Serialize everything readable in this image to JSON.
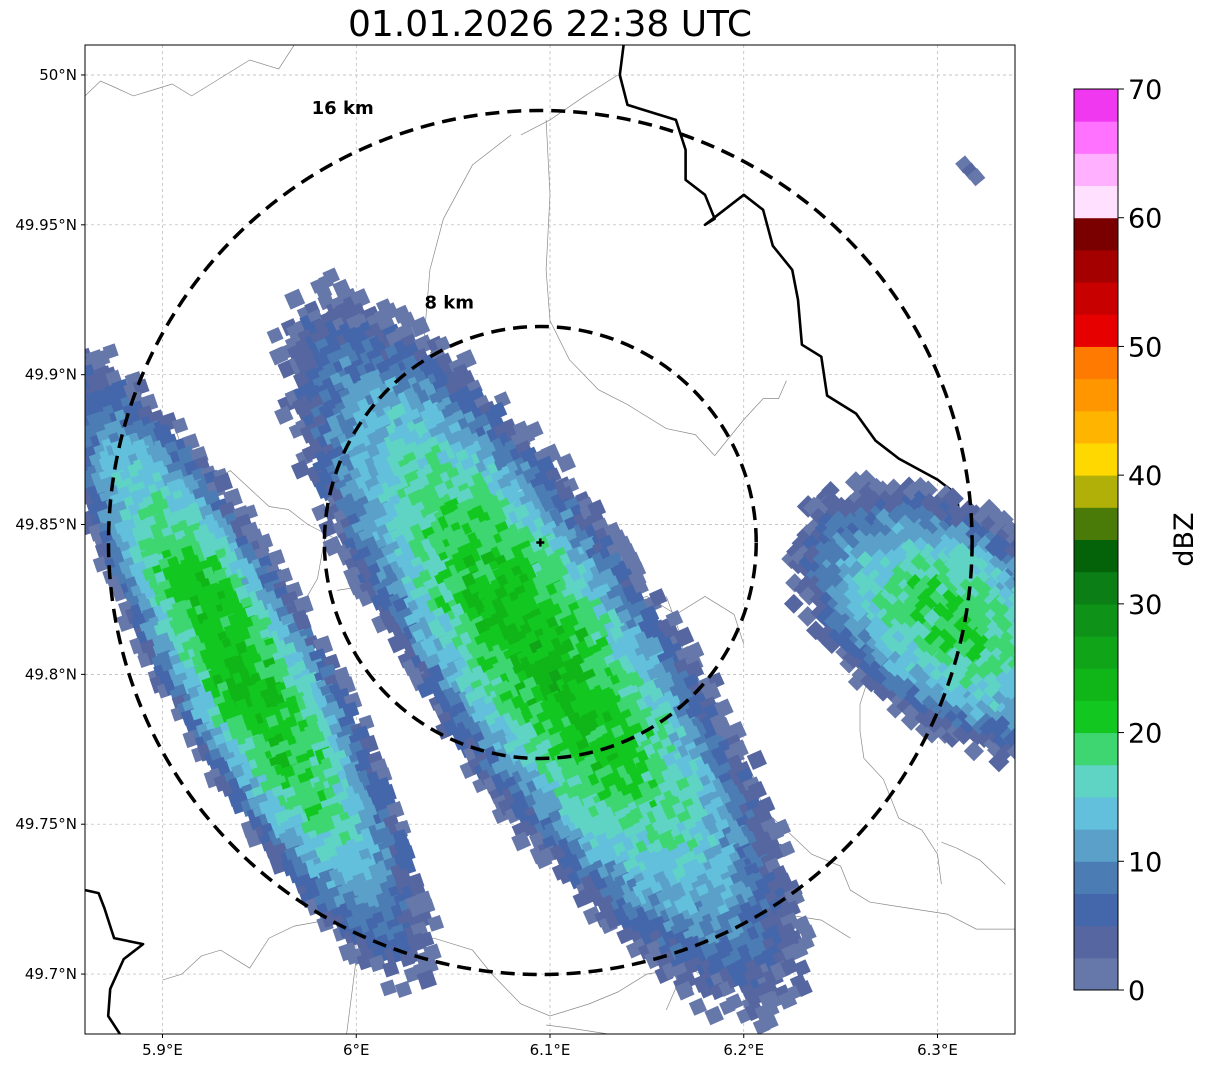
{
  "title": "01.01.2026 22:38 UTC",
  "chart_data": {
    "type": "heatmap",
    "title": "01.01.2026 22:38 UTC",
    "xlabel": "",
    "ylabel": "",
    "x_range": [
      5.86,
      6.34
    ],
    "y_range": [
      49.68,
      50.01
    ],
    "x_ticks": [
      5.9,
      6.0,
      6.1,
      6.2,
      6.3
    ],
    "x_tick_labels": [
      "5.9°E",
      "6°E",
      "6.1°E",
      "6.2°E",
      "6.3°E"
    ],
    "y_ticks": [
      49.7,
      49.75,
      49.8,
      49.85,
      49.9,
      49.95,
      50.0
    ],
    "y_tick_labels": [
      "49.7°N",
      "49.75°N",
      "49.8°N",
      "49.85°N",
      "49.9°N",
      "49.95°N",
      "50°N"
    ],
    "grid": true,
    "radar_site": {
      "lon": 6.095,
      "lat": 49.844
    },
    "range_rings": [
      {
        "label": "8 km",
        "radius_km": 8,
        "label_lon": 6.048,
        "label_lat": 49.922
      },
      {
        "label": "16 km",
        "radius_km": 16,
        "label_lon": 5.993,
        "label_lat": 49.987
      }
    ],
    "colorbar": {
      "label": "dBZ",
      "min": 0,
      "max": 70,
      "step": 2.5,
      "tick_values": [
        0,
        10,
        20,
        30,
        40,
        50,
        60,
        70
      ],
      "tick_labels": [
        "0",
        "10",
        "20",
        "30",
        "40",
        "50",
        "60",
        "70"
      ],
      "colors": [
        "#6677aa",
        "#5566a0",
        "#4466aa",
        "#4c7cb4",
        "#5aa0c8",
        "#62c0dc",
        "#5fd4c4",
        "#3dd670",
        "#12c820",
        "#10b618",
        "#10a418",
        "#0e9218",
        "#0b7e16",
        "#046208",
        "#4a7a08",
        "#b0b008",
        "#ffd800",
        "#ffb400",
        "#ff9600",
        "#ff7a00",
        "#e60000",
        "#c80000",
        "#a40000",
        "#7a0000",
        "#ffe0ff",
        "#ffb0ff",
        "#ff72ff",
        "#f038f0"
      ]
    },
    "echo_cells": [
      {
        "name": "west-cell",
        "lon": 5.942,
        "lat": 49.802,
        "half_length_km": 13.2,
        "half_width_km": 3.0,
        "angle_deg": 61,
        "peak_dbz": 22
      },
      {
        "name": "central-cell",
        "lon": 6.097,
        "lat": 49.807,
        "half_length_km": 15.7,
        "half_width_km": 4.6,
        "angle_deg": 56,
        "peak_dbz": 22
      },
      {
        "name": "east-cell",
        "lon": 6.31,
        "lat": 49.818,
        "half_length_km": 6.8,
        "half_width_km": 4.0,
        "angle_deg": 35,
        "peak_dbz": 19
      },
      {
        "name": "northeast-speck",
        "lon": 6.317,
        "lat": 49.968,
        "half_length_km": 0.4,
        "half_width_km": 0.3,
        "angle_deg": 40,
        "peak_dbz": 3
      }
    ],
    "borders_major": [
      [
        [
          6.138,
          50.01
        ],
        [
          6.136,
          50.0
        ],
        [
          6.14,
          49.99
        ],
        [
          6.165,
          49.985
        ],
        [
          6.17,
          49.975
        ],
        [
          6.17,
          49.965
        ],
        [
          6.18,
          49.96
        ],
        [
          6.185,
          49.952
        ],
        [
          6.18,
          49.95
        ],
        [
          6.19,
          49.955
        ],
        [
          6.2,
          49.96
        ],
        [
          6.21,
          49.955
        ],
        [
          6.215,
          49.943
        ],
        [
          6.225,
          49.935
        ],
        [
          6.228,
          49.925
        ],
        [
          6.23,
          49.91
        ],
        [
          6.24,
          49.906
        ],
        [
          6.243,
          49.893
        ],
        [
          6.258,
          49.887
        ],
        [
          6.268,
          49.878
        ],
        [
          6.28,
          49.872
        ],
        [
          6.3,
          49.865
        ],
        [
          6.31,
          49.86
        ],
        [
          6.312,
          49.848
        ],
        [
          6.318,
          49.835
        ],
        [
          6.33,
          49.838
        ],
        [
          6.34,
          49.85
        ]
      ],
      [
        [
          5.86,
          49.728
        ],
        [
          5.867,
          49.727
        ],
        [
          5.87,
          49.722
        ],
        [
          5.875,
          49.712
        ],
        [
          5.89,
          49.71
        ],
        [
          5.88,
          49.705
        ],
        [
          5.873,
          49.695
        ],
        [
          5.872,
          49.686
        ],
        [
          5.878,
          49.68
        ]
      ]
    ],
    "borders_minor": [
      [
        [
          5.86,
          49.993
        ],
        [
          5.868,
          49.998
        ],
        [
          5.875,
          49.996
        ],
        [
          5.885,
          49.993
        ],
        [
          5.895,
          49.995
        ],
        [
          5.905,
          49.997
        ],
        [
          5.915,
          49.993
        ],
        [
          5.93,
          49.999
        ],
        [
          5.945,
          50.005
        ],
        [
          5.96,
          50.002
        ],
        [
          5.968,
          50.01
        ]
      ],
      [
        [
          6.08,
          49.98
        ],
        [
          6.06,
          49.97
        ],
        [
          6.045,
          49.952
        ],
        [
          6.038,
          49.935
        ],
        [
          6.035,
          49.912
        ],
        [
          6.022,
          49.895
        ],
        [
          6.005,
          49.885
        ],
        [
          5.99,
          49.872
        ],
        [
          5.985,
          49.85
        ],
        [
          5.98,
          49.832
        ],
        [
          5.972,
          49.823
        ],
        [
          5.968,
          49.812
        ],
        [
          5.96,
          49.808
        ],
        [
          5.957,
          49.803
        ]
      ],
      [
        [
          5.86,
          49.893
        ],
        [
          5.87,
          49.885
        ],
        [
          5.876,
          49.872
        ],
        [
          5.88,
          49.864
        ],
        [
          5.888,
          49.868
        ],
        [
          5.895,
          49.879
        ],
        [
          5.905,
          49.885
        ],
        [
          5.912,
          49.872
        ],
        [
          5.92,
          49.862
        ],
        [
          5.935,
          49.868
        ],
        [
          5.945,
          49.862
        ],
        [
          5.955,
          49.856
        ],
        [
          5.965,
          49.855
        ],
        [
          5.975,
          49.85
        ],
        [
          5.99,
          49.845
        ]
      ],
      [
        [
          6.085,
          49.98
        ],
        [
          6.1,
          49.985
        ],
        [
          6.118,
          49.993
        ],
        [
          6.135,
          50.0
        ]
      ],
      [
        [
          6.098,
          49.985
        ],
        [
          6.1,
          49.96
        ],
        [
          6.098,
          49.935
        ],
        [
          6.1,
          49.918
        ],
        [
          6.11,
          49.905
        ],
        [
          6.125,
          49.895
        ],
        [
          6.14,
          49.89
        ],
        [
          6.16,
          49.882
        ],
        [
          6.175,
          49.88
        ],
        [
          6.185,
          49.873
        ]
      ],
      [
        [
          6.185,
          49.873
        ],
        [
          6.2,
          49.885
        ],
        [
          6.21,
          49.892
        ],
        [
          6.218,
          49.892
        ],
        [
          6.222,
          49.898
        ]
      ],
      [
        [
          5.99,
          49.828
        ],
        [
          6.01,
          49.83
        ],
        [
          6.035,
          49.826
        ],
        [
          6.045,
          49.83
        ],
        [
          6.06,
          49.827
        ],
        [
          6.075,
          49.83
        ]
      ],
      [
        [
          6.072,
          49.832
        ],
        [
          6.09,
          49.826
        ],
        [
          6.11,
          49.822
        ],
        [
          6.13,
          49.822
        ],
        [
          6.15,
          49.826
        ],
        [
          6.165,
          49.82
        ],
        [
          6.18,
          49.826
        ],
        [
          6.195,
          49.82
        ],
        [
          6.2,
          49.81
        ]
      ],
      [
        [
          6.16,
          49.826
        ],
        [
          6.168,
          49.812
        ],
        [
          6.17,
          49.8
        ],
        [
          6.175,
          49.79
        ],
        [
          6.18,
          49.778
        ],
        [
          6.19,
          49.77
        ],
        [
          6.205,
          49.766
        ],
        [
          6.21,
          49.755
        ],
        [
          6.222,
          49.748
        ],
        [
          6.235,
          49.74
        ],
        [
          6.25,
          49.736
        ],
        [
          6.255,
          49.728
        ],
        [
          6.265,
          49.724
        ],
        [
          6.285,
          49.722
        ],
        [
          6.305,
          49.72
        ],
        [
          6.32,
          49.715
        ],
        [
          6.34,
          49.715
        ]
      ],
      [
        [
          6.26,
          49.825
        ],
        [
          6.27,
          49.817
        ],
        [
          6.268,
          49.808
        ],
        [
          6.265,
          49.8
        ],
        [
          6.26,
          49.79
        ],
        [
          6.26,
          49.781
        ],
        [
          6.262,
          49.772
        ],
        [
          6.272,
          49.765
        ],
        [
          6.28,
          49.752
        ],
        [
          6.292,
          49.748
        ],
        [
          6.3,
          49.74
        ],
        [
          6.302,
          49.73
        ]
      ],
      [
        [
          5.957,
          49.803
        ],
        [
          5.963,
          49.79
        ],
        [
          5.975,
          49.78
        ],
        [
          5.99,
          49.77
        ],
        [
          6.0,
          49.762
        ],
        [
          5.997,
          49.745
        ],
        [
          6.0,
          49.732
        ],
        [
          5.998,
          49.718
        ],
        [
          6.0,
          49.705
        ],
        [
          5.998,
          49.695
        ],
        [
          5.995,
          49.68
        ]
      ],
      [
        [
          5.9,
          49.698
        ],
        [
          5.91,
          49.7
        ],
        [
          5.92,
          49.706
        ],
        [
          5.93,
          49.708
        ],
        [
          5.945,
          49.702
        ],
        [
          5.955,
          49.712
        ],
        [
          5.968,
          49.716
        ],
        [
          5.985,
          49.718
        ],
        [
          5.998,
          49.718
        ]
      ],
      [
        [
          6.0,
          49.712
        ],
        [
          6.02,
          49.708
        ],
        [
          6.04,
          49.712
        ],
        [
          6.06,
          49.708
        ],
        [
          6.07,
          49.7
        ],
        [
          6.085,
          49.69
        ],
        [
          6.1,
          49.686
        ],
        [
          6.12,
          49.69
        ],
        [
          6.135,
          49.694
        ],
        [
          6.15,
          49.7
        ],
        [
          6.168,
          49.702
        ],
        [
          6.18,
          49.7
        ]
      ],
      [
        [
          6.16,
          49.688
        ],
        [
          6.168,
          49.7
        ],
        [
          6.18,
          49.707
        ],
        [
          6.19,
          49.718
        ],
        [
          6.205,
          49.712
        ],
        [
          6.22,
          49.72
        ],
        [
          6.24,
          49.718
        ],
        [
          6.255,
          49.712
        ]
      ],
      [
        [
          6.098,
          49.683
        ],
        [
          6.11,
          49.682
        ],
        [
          6.13,
          49.68
        ],
        [
          6.15,
          49.68
        ],
        [
          6.16,
          49.68
        ]
      ],
      [
        [
          6.335,
          49.73
        ],
        [
          6.322,
          49.738
        ],
        [
          6.31,
          49.742
        ],
        [
          6.302,
          49.744
        ]
      ]
    ]
  }
}
